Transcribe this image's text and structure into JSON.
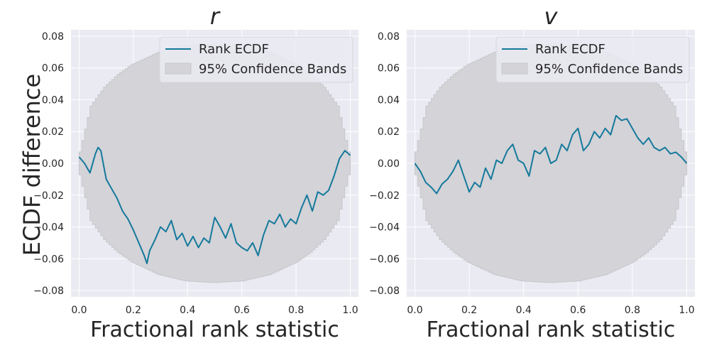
{
  "figure": {
    "ylabel": "ECDF difference"
  },
  "chart_data": [
    {
      "type": "line",
      "title": "r",
      "xlabel": "Fractional rank statistic",
      "ylabel": "ECDF difference",
      "xlim": [
        -0.03,
        1.03
      ],
      "ylim": [
        -0.084,
        0.084
      ],
      "xticks": [
        0.0,
        0.2,
        0.4,
        0.6,
        0.8,
        1.0
      ],
      "xtick_labels": [
        "0.0",
        "0.2",
        "0.4",
        "0.6",
        "0.8",
        "1.0"
      ],
      "yticks": [
        0.08,
        0.06,
        0.04,
        0.02,
        0.0,
        -0.02,
        -0.04,
        -0.06,
        -0.08
      ],
      "ytick_labels": [
        "0.08",
        "0.06",
        "0.04",
        "0.02",
        "0.00",
        "−0.02",
        "−0.04",
        "−0.06",
        "−0.08"
      ],
      "grid": true,
      "legend": {
        "position": "top-right",
        "entries": [
          "Rank ECDF",
          "95% Confidence Bands"
        ]
      },
      "colors": {
        "line": "#15799b",
        "band": "#d3d3d8",
        "band_edge": "#c7c7cc",
        "background": "#eaeaf2",
        "grid": "#ffffff"
      },
      "band": {
        "x": [
          0,
          0.05,
          0.1,
          0.15,
          0.2,
          0.3,
          0.4,
          0.5,
          0.6,
          0.7,
          0.8,
          0.85,
          0.9,
          0.95,
          1.0
        ],
        "half_width": [
          0.0,
          0.036,
          0.048,
          0.056,
          0.062,
          0.07,
          0.074,
          0.075,
          0.074,
          0.07,
          0.062,
          0.056,
          0.048,
          0.036,
          0.0
        ]
      },
      "series": [
        {
          "name": "Rank ECDF",
          "x": [
            0,
            0.02,
            0.04,
            0.06,
            0.07,
            0.08,
            0.1,
            0.12,
            0.14,
            0.16,
            0.18,
            0.2,
            0.22,
            0.24,
            0.25,
            0.26,
            0.28,
            0.3,
            0.32,
            0.34,
            0.36,
            0.38,
            0.4,
            0.42,
            0.44,
            0.46,
            0.48,
            0.5,
            0.52,
            0.54,
            0.56,
            0.58,
            0.6,
            0.62,
            0.64,
            0.66,
            0.68,
            0.7,
            0.72,
            0.74,
            0.76,
            0.78,
            0.8,
            0.82,
            0.84,
            0.86,
            0.88,
            0.9,
            0.92,
            0.94,
            0.96,
            0.98,
            1.0
          ],
          "y": [
            0.004,
            0.0,
            -0.006,
            0.006,
            0.01,
            0.008,
            -0.01,
            -0.016,
            -0.022,
            -0.03,
            -0.035,
            -0.042,
            -0.05,
            -0.058,
            -0.063,
            -0.055,
            -0.048,
            -0.04,
            -0.043,
            -0.036,
            -0.048,
            -0.044,
            -0.052,
            -0.046,
            -0.053,
            -0.047,
            -0.05,
            -0.034,
            -0.04,
            -0.047,
            -0.038,
            -0.05,
            -0.053,
            -0.055,
            -0.05,
            -0.058,
            -0.045,
            -0.036,
            -0.038,
            -0.032,
            -0.04,
            -0.035,
            -0.038,
            -0.028,
            -0.02,
            -0.03,
            -0.018,
            -0.02,
            -0.017,
            -0.008,
            0.003,
            0.008,
            0.005
          ]
        }
      ]
    },
    {
      "type": "line",
      "title": "v",
      "xlabel": "Fractional rank statistic",
      "ylabel": "",
      "xlim": [
        -0.03,
        1.03
      ],
      "ylim": [
        -0.084,
        0.084
      ],
      "xticks": [
        0.0,
        0.2,
        0.4,
        0.6,
        0.8,
        1.0
      ],
      "xtick_labels": [
        "0.0",
        "0.2",
        "0.4",
        "0.6",
        "0.8",
        "1.0"
      ],
      "yticks": [
        0.08,
        0.06,
        0.04,
        0.02,
        0.0,
        -0.02,
        -0.04,
        -0.06,
        -0.08
      ],
      "ytick_labels": [
        "0.08",
        "0.06",
        "0.04",
        "0.02",
        "0.00",
        "−0.02",
        "−0.04",
        "−0.06",
        "−0.08"
      ],
      "grid": true,
      "legend": {
        "position": "top-right",
        "entries": [
          "Rank ECDF",
          "95% Confidence Bands"
        ]
      },
      "colors": {
        "line": "#15799b",
        "band": "#d3d3d8",
        "band_edge": "#c7c7cc",
        "background": "#eaeaf2",
        "grid": "#ffffff"
      },
      "band": {
        "x": [
          0,
          0.05,
          0.1,
          0.15,
          0.2,
          0.3,
          0.4,
          0.5,
          0.6,
          0.7,
          0.8,
          0.85,
          0.9,
          0.95,
          1.0
        ],
        "half_width": [
          0.0,
          0.036,
          0.048,
          0.056,
          0.062,
          0.07,
          0.074,
          0.075,
          0.074,
          0.07,
          0.062,
          0.056,
          0.048,
          0.036,
          0.0
        ]
      },
      "series": [
        {
          "name": "Rank ECDF",
          "x": [
            0,
            0.02,
            0.04,
            0.06,
            0.08,
            0.1,
            0.12,
            0.14,
            0.16,
            0.18,
            0.2,
            0.22,
            0.24,
            0.26,
            0.28,
            0.3,
            0.32,
            0.34,
            0.36,
            0.38,
            0.4,
            0.42,
            0.44,
            0.46,
            0.48,
            0.5,
            0.52,
            0.54,
            0.56,
            0.58,
            0.6,
            0.62,
            0.64,
            0.66,
            0.68,
            0.7,
            0.72,
            0.74,
            0.76,
            0.78,
            0.8,
            0.82,
            0.84,
            0.86,
            0.88,
            0.9,
            0.92,
            0.94,
            0.96,
            0.98,
            1.0
          ],
          "y": [
            0.0,
            -0.005,
            -0.012,
            -0.015,
            -0.019,
            -0.013,
            -0.01,
            -0.005,
            0.002,
            -0.008,
            -0.018,
            -0.012,
            -0.015,
            -0.003,
            -0.01,
            0.002,
            0.0,
            0.008,
            0.012,
            0.002,
            0.0,
            -0.008,
            0.008,
            0.006,
            0.01,
            0.0,
            0.002,
            0.012,
            0.008,
            0.018,
            0.022,
            0.008,
            0.012,
            0.02,
            0.016,
            0.022,
            0.018,
            0.03,
            0.027,
            0.028,
            0.022,
            0.016,
            0.012,
            0.016,
            0.01,
            0.008,
            0.01,
            0.006,
            0.007,
            0.004,
            0.0
          ]
        }
      ]
    }
  ]
}
